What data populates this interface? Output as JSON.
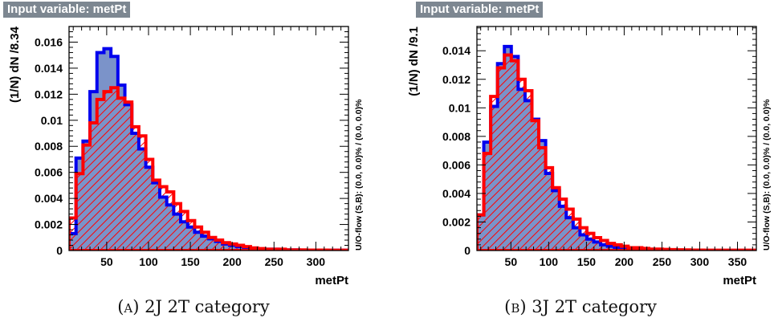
{
  "colors": {
    "signal": "#0000ee",
    "signal_fill": "#7b93c9",
    "background": "#ff0000",
    "tag_bg": "#7d8791"
  },
  "chart_data": [
    {
      "type": "bar",
      "tag": "Input variable: metPt",
      "xlabel": "metPt",
      "ylabel": "(1/N) dN /8.34",
      "right_label": "U/O-flow (S,B): (0.0, 0.0)% / (0.0, 0.0)%",
      "caption_letter": "A",
      "caption_text": "2J 2T category",
      "xlim": [
        5,
        339
      ],
      "ylim": [
        0,
        0.0172
      ],
      "bin_width": 8.34,
      "xticks": [
        50,
        100,
        150,
        200,
        250,
        300
      ],
      "yticks": [
        0,
        0.002,
        0.004,
        0.006,
        0.008,
        0.01,
        0.012,
        0.014,
        0.016
      ],
      "ytick_labels": [
        "0",
        "0.002",
        "0.004",
        "0.006",
        "0.008",
        "0.01",
        "0.012",
        "0.014",
        "0.016"
      ],
      "series": [
        {
          "name": "S",
          "values": [
            0.0013,
            0.0071,
            0.0084,
            0.0122,
            0.0152,
            0.0155,
            0.0149,
            0.0127,
            0.0112,
            0.009,
            0.0078,
            0.0064,
            0.0052,
            0.0041,
            0.0035,
            0.0028,
            0.0022,
            0.0018,
            0.0014,
            0.0011,
            0.0009,
            0.0007,
            0.0005,
            0.0004,
            0.0003,
            0.0002,
            0.00015,
            0.0001,
            0.0001,
            0.0001,
            5e-05,
            5e-05,
            5e-05,
            3e-05,
            3e-05,
            3e-05,
            2e-05,
            2e-05,
            2e-05,
            2e-05
          ]
        },
        {
          "name": "B",
          "values": [
            0.0025,
            0.0059,
            0.0081,
            0.0098,
            0.0116,
            0.0122,
            0.0125,
            0.0117,
            0.0114,
            0.0095,
            0.0088,
            0.007,
            0.0054,
            0.0049,
            0.0045,
            0.0036,
            0.003,
            0.0023,
            0.0018,
            0.0014,
            0.001,
            0.0008,
            0.0006,
            0.0005,
            0.0004,
            0.0003,
            0.0002,
            0.00015,
            0.0001,
            0.0001,
            0.0001,
            5e-05,
            5e-05,
            5e-05,
            3e-05,
            3e-05,
            3e-05,
            2e-05,
            2e-05,
            2e-05
          ]
        }
      ]
    },
    {
      "type": "bar",
      "tag": "Input variable: metPt",
      "xlabel": "metPt",
      "ylabel": "(1/N) dN /9.1",
      "right_label": "U/O-flow (S,B): (0.0, 0.0)% / (0.0, 0.0)%",
      "caption_letter": "B",
      "caption_text": "3J 2T category",
      "xlim": [
        5,
        375
      ],
      "ylim": [
        0,
        0.0157
      ],
      "bin_width": 9.1,
      "xticks": [
        50,
        100,
        150,
        200,
        250,
        300,
        350
      ],
      "yticks": [
        0,
        0.002,
        0.004,
        0.006,
        0.008,
        0.01,
        0.012,
        0.014
      ],
      "ytick_labels": [
        "0",
        "0.002",
        "0.004",
        "0.006",
        "0.008",
        "0.01",
        "0.012",
        "0.014"
      ],
      "series": [
        {
          "name": "S",
          "values": [
            0.0025,
            0.0076,
            0.0101,
            0.0131,
            0.0143,
            0.0136,
            0.0113,
            0.0105,
            0.0092,
            0.0077,
            0.0054,
            0.0042,
            0.0031,
            0.0023,
            0.0016,
            0.0011,
            0.0008,
            0.0006,
            0.0004,
            0.0003,
            0.0002,
            0.00015,
            0.0001,
            0.0001,
            7e-05,
            5e-05,
            4e-05,
            3e-05,
            3e-05,
            2e-05,
            2e-05,
            2e-05,
            1e-05,
            1e-05,
            1e-05,
            1e-05,
            1e-05,
            1e-05,
            1e-05,
            1e-05,
            1e-05
          ]
        },
        {
          "name": "B",
          "values": [
            0.0025,
            0.0068,
            0.0108,
            0.0128,
            0.0137,
            0.0133,
            0.012,
            0.0112,
            0.0091,
            0.0072,
            0.0058,
            0.0044,
            0.0036,
            0.0029,
            0.0022,
            0.0016,
            0.0012,
            0.0009,
            0.0007,
            0.0005,
            0.0004,
            0.0003,
            0.0002,
            0.0002,
            0.00015,
            0.0001,
            0.0001,
            8e-05,
            6e-05,
            5e-05,
            4e-05,
            3e-05,
            3e-05,
            2e-05,
            2e-05,
            2e-05,
            2e-05,
            2e-05,
            2e-05,
            2e-05,
            2e-05
          ]
        }
      ]
    }
  ]
}
